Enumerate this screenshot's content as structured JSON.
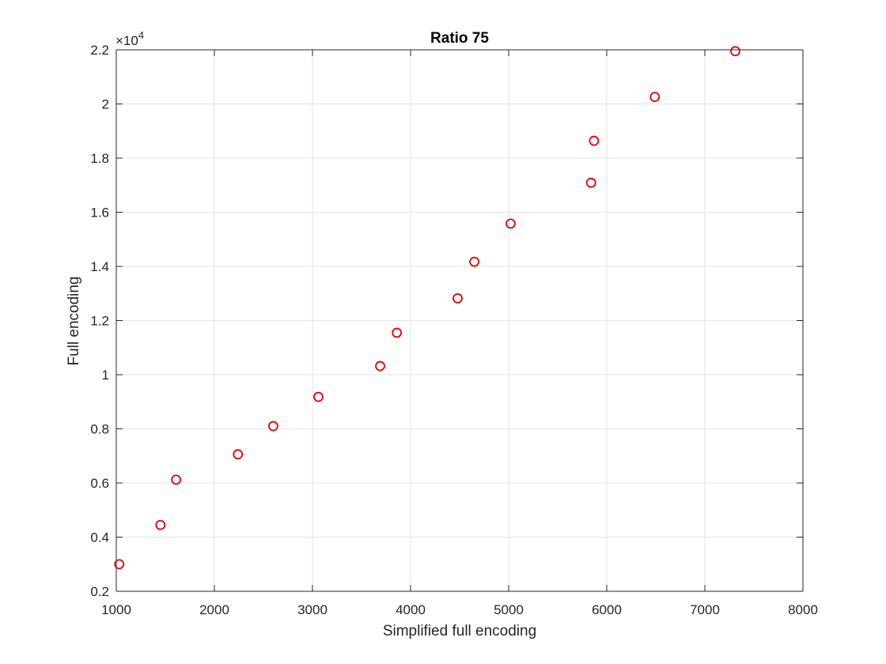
{
  "chart_data": {
    "type": "scatter",
    "title": "Ratio 75",
    "xlabel": "Simplified full encoding",
    "ylabel": "Full encoding",
    "xlim": [
      1000,
      8000
    ],
    "ylim": [
      0.2,
      2.2
    ],
    "y_exponent_label": "×10",
    "y_exponent_power": "4",
    "x_ticks": [
      "1000",
      "2000",
      "3000",
      "4000",
      "5000",
      "6000",
      "7000",
      "8000"
    ],
    "y_ticks": [
      "0.2",
      "0.4",
      "0.6",
      "0.8",
      "1",
      "1.2",
      "1.4",
      "1.6",
      "1.8",
      "2",
      "2.2"
    ],
    "x_tick_values": [
      1000,
      2000,
      3000,
      4000,
      5000,
      6000,
      7000,
      8000
    ],
    "y_tick_values": [
      0.2,
      0.4,
      0.6,
      0.8,
      1.0,
      1.2,
      1.4,
      1.6,
      1.8,
      2.0,
      2.2
    ],
    "grid": true,
    "marker": "circle-open",
    "marker_color": "#e60000",
    "points": [
      {
        "x": 1030,
        "y": 0.3
      },
      {
        "x": 1450,
        "y": 0.445
      },
      {
        "x": 1610,
        "y": 0.612
      },
      {
        "x": 2240,
        "y": 0.706
      },
      {
        "x": 2600,
        "y": 0.81
      },
      {
        "x": 3060,
        "y": 0.918
      },
      {
        "x": 3690,
        "y": 1.032
      },
      {
        "x": 3860,
        "y": 1.155
      },
      {
        "x": 4480,
        "y": 1.282
      },
      {
        "x": 4650,
        "y": 1.417
      },
      {
        "x": 5020,
        "y": 1.558
      },
      {
        "x": 5840,
        "y": 1.709
      },
      {
        "x": 5870,
        "y": 1.864
      },
      {
        "x": 6490,
        "y": 2.026
      },
      {
        "x": 7310,
        "y": 2.195
      }
    ]
  }
}
